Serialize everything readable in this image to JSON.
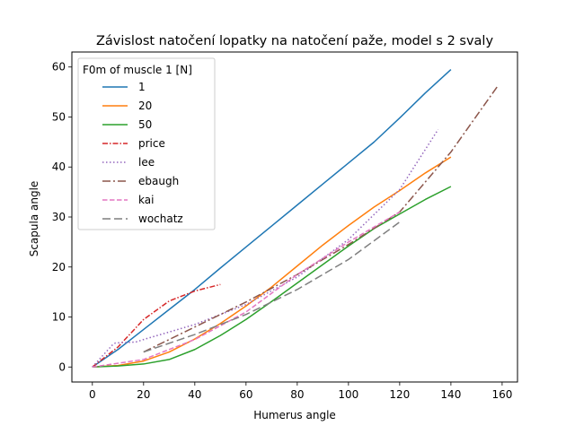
{
  "chart_data": {
    "type": "line",
    "title": "Závislost natočení lopatky na natočení paže, model s 2 svaly",
    "xlabel": "Humerus angle",
    "ylabel": "Scapula angle",
    "xlim": [
      -8,
      166
    ],
    "ylim": [
      -3,
      63
    ],
    "xticks": [
      0,
      20,
      40,
      60,
      80,
      100,
      120,
      140,
      160
    ],
    "yticks": [
      0,
      10,
      20,
      30,
      40,
      50,
      60
    ],
    "grid": false,
    "legend_title": "F0m of muscle 1 [N]",
    "legend_position": "top-left",
    "series": [
      {
        "name": "1",
        "color": "#1f77b4",
        "dash": "",
        "x": [
          0,
          10,
          20,
          30,
          40,
          50,
          60,
          70,
          80,
          90,
          100,
          110,
          120,
          130,
          140
        ],
        "y": [
          0,
          3.5,
          7.5,
          11.5,
          15.5,
          19.8,
          24,
          28.2,
          32.4,
          36.6,
          40.8,
          45,
          49.8,
          54.8,
          59.5
        ]
      },
      {
        "name": "20",
        "color": "#ff7f0e",
        "dash": "",
        "x": [
          0,
          10,
          20,
          30,
          40,
          50,
          60,
          70,
          80,
          90,
          100,
          110,
          120,
          130,
          140
        ],
        "y": [
          0,
          0.3,
          1.2,
          3,
          5.6,
          8.7,
          12.2,
          16,
          20.2,
          24.4,
          28.3,
          32,
          35.3,
          38.8,
          42
        ]
      },
      {
        "name": "50",
        "color": "#2ca02c",
        "dash": "",
        "x": [
          0,
          10,
          20,
          30,
          40,
          50,
          60,
          70,
          80,
          90,
          100,
          110,
          120,
          130,
          140
        ],
        "y": [
          0,
          0.2,
          0.6,
          1.5,
          3.5,
          6.3,
          9.5,
          13.1,
          16.8,
          20.5,
          24.2,
          27.7,
          30.6,
          33.5,
          36.1
        ]
      },
      {
        "name": "price",
        "color": "#d62728",
        "dash": "6,2,1.5,2",
        "x": [
          0,
          10,
          20,
          30,
          40,
          50
        ],
        "y": [
          0,
          4,
          9.5,
          13.2,
          15.2,
          16.5
        ]
      },
      {
        "name": "lee",
        "color": "#9467bd",
        "dash": "1.5,2.5",
        "x": [
          0,
          8,
          9,
          17,
          20,
          40,
          60,
          80,
          100,
          120,
          135
        ],
        "y": [
          0,
          4.5,
          4.8,
          5,
          5.5,
          8.5,
          12.5,
          18,
          25.5,
          35.5,
          47.5
        ]
      },
      {
        "name": "ebaugh",
        "color": "#8c564b",
        "dash": "9,3,2,3",
        "x": [
          20,
          40,
          60,
          80,
          100,
          120,
          140,
          158
        ],
        "y": [
          3,
          8,
          13,
          18.5,
          24.5,
          31,
          43,
          56
        ]
      },
      {
        "name": "kai",
        "color": "#e377c2",
        "dash": "5.5,2.5",
        "x": [
          0,
          20,
          40,
          60,
          80,
          100,
          120
        ],
        "y": [
          0,
          1.5,
          5.5,
          11,
          18.5,
          25,
          31
        ]
      },
      {
        "name": "wochatz",
        "color": "#7f7f7f",
        "dash": "9,4",
        "x": [
          20,
          40,
          60,
          80,
          100,
          120
        ],
        "y": [
          3,
          6.5,
          10.5,
          15.5,
          21.5,
          29
        ]
      }
    ]
  }
}
